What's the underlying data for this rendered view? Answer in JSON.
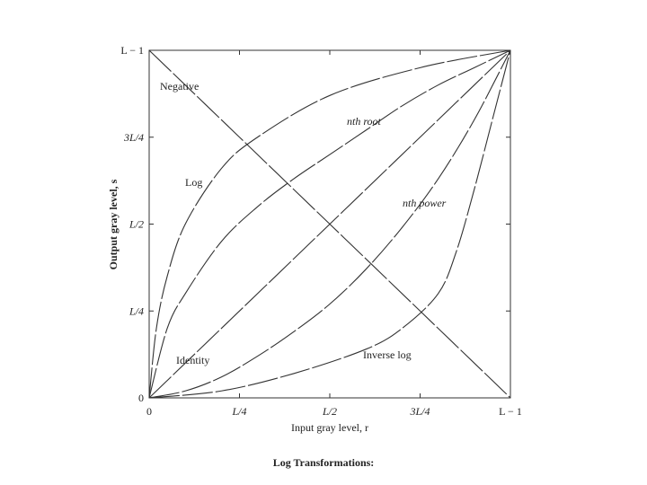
{
  "caption": "Log Transformations:",
  "chart_data": {
    "type": "line",
    "xlabel": "Input gray level, r",
    "ylabel": "Output gray level, s",
    "xlim": [
      0,
      1
    ],
    "ylim": [
      0,
      1
    ],
    "x_ticks": [
      {
        "value": 0,
        "label": "0"
      },
      {
        "value": 0.25,
        "label": "L/4"
      },
      {
        "value": 0.5,
        "label": "L/2"
      },
      {
        "value": 0.75,
        "label": "3L/4"
      },
      {
        "value": 1,
        "label": "L − 1"
      }
    ],
    "y_ticks": [
      {
        "value": 0,
        "label": "0"
      },
      {
        "value": 0.25,
        "label": "L/4"
      },
      {
        "value": 0.5,
        "label": "L/2"
      },
      {
        "value": 0.75,
        "label": "3L/4"
      },
      {
        "value": 1,
        "label": "L − 1"
      }
    ],
    "grid": false,
    "series": [
      {
        "name": "Negative",
        "x": [
          0,
          0.25,
          0.5,
          0.75,
          1
        ],
        "y": [
          1,
          0.75,
          0.5,
          0.25,
          0
        ]
      },
      {
        "name": "Log",
        "x": [
          0,
          0.02,
          0.05,
          0.1,
          0.2,
          0.3,
          0.5,
          0.75,
          1
        ],
        "y": [
          0,
          0.2,
          0.35,
          0.5,
          0.66,
          0.75,
          0.87,
          0.95,
          1
        ]
      },
      {
        "name": "nth root",
        "x": [
          0,
          0.05,
          0.1,
          0.2,
          0.3,
          0.4,
          0.5,
          0.6,
          0.7,
          0.8,
          0.9,
          1
        ],
        "y": [
          0,
          0.2,
          0.3,
          0.45,
          0.55,
          0.63,
          0.7,
          0.77,
          0.84,
          0.9,
          0.95,
          1
        ]
      },
      {
        "name": "Identity",
        "x": [
          0,
          0.5,
          1
        ],
        "y": [
          0,
          0.5,
          1
        ]
      },
      {
        "name": "nth power",
        "x": [
          0,
          0.1,
          0.2,
          0.3,
          0.4,
          0.5,
          0.6,
          0.7,
          0.8,
          0.9,
          1
        ],
        "y": [
          0,
          0.02,
          0.06,
          0.12,
          0.19,
          0.27,
          0.37,
          0.49,
          0.63,
          0.8,
          1
        ]
      },
      {
        "name": "Inverse log",
        "x": [
          0,
          0.2,
          0.4,
          0.6,
          0.7,
          0.8,
          0.85,
          0.9,
          0.95,
          1
        ],
        "y": [
          0,
          0.02,
          0.07,
          0.14,
          0.2,
          0.3,
          0.42,
          0.6,
          0.8,
          1
        ]
      }
    ],
    "annotations": [
      "Negative",
      "Log",
      "nth root",
      "Identity",
      "nth power",
      "Inverse log"
    ]
  }
}
